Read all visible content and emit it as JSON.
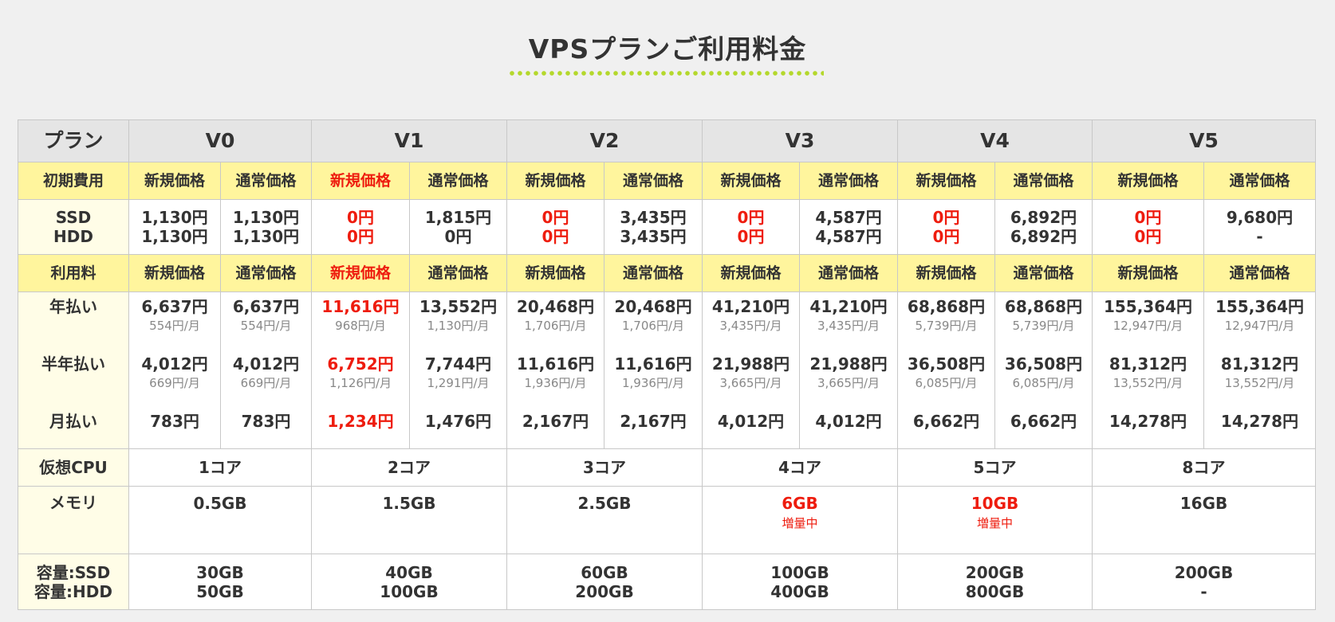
{
  "title": "VPSプランご利用料金",
  "labels": {
    "plan": "プラン",
    "initial": "初期費用",
    "ssd": "SSD",
    "hdd": "HDD",
    "usage": "利用料",
    "annual": "年払い",
    "half": "半年払い",
    "monthly": "月払い",
    "cpu": "仮想CPU",
    "memory": "メモリ",
    "cap_ssd": "容量:SSD",
    "cap_hdd": "容量:HDD",
    "new_price": "新規価格",
    "normal_price": "通常価格"
  },
  "colors": {
    "accent_red": "#ee1c0e",
    "header_yellow": "#fff59d",
    "dot_green": "#b4d82c"
  },
  "plans": [
    {
      "name": "V0",
      "init_new": {
        "ssd": "1,130円",
        "hdd": "1,130円"
      },
      "init_norm": {
        "ssd": "1,130円",
        "hdd": "1,130円"
      },
      "fee_new": {
        "annual": "6,637円",
        "annual_sub": "554円/月",
        "half": "4,012円",
        "half_sub": "669円/月",
        "monthly": "783円"
      },
      "fee_norm": {
        "annual": "6,637円",
        "annual_sub": "554円/月",
        "half": "4,012円",
        "half_sub": "669円/月",
        "monthly": "783円"
      },
      "cpu": "1コア",
      "memory": "0.5GB",
      "memory_note": "",
      "cap_ssd": "30GB",
      "cap_hdd": "50GB"
    },
    {
      "name": "V1",
      "init_new": {
        "ssd": "0円",
        "hdd": "0円"
      },
      "init_norm": {
        "ssd": "1,815円",
        "hdd": "0円"
      },
      "fee_new": {
        "annual": "11,616円",
        "annual_sub": "968円/月",
        "half": "6,752円",
        "half_sub": "1,126円/月",
        "monthly": "1,234円"
      },
      "fee_norm": {
        "annual": "13,552円",
        "annual_sub": "1,130円/月",
        "half": "7,744円",
        "half_sub": "1,291円/月",
        "monthly": "1,476円"
      },
      "cpu": "2コア",
      "memory": "1.5GB",
      "memory_note": "",
      "cap_ssd": "40GB",
      "cap_hdd": "100GB"
    },
    {
      "name": "V2",
      "init_new": {
        "ssd": "0円",
        "hdd": "0円"
      },
      "init_norm": {
        "ssd": "3,435円",
        "hdd": "3,435円"
      },
      "fee_new": {
        "annual": "20,468円",
        "annual_sub": "1,706円/月",
        "half": "11,616円",
        "half_sub": "1,936円/月",
        "monthly": "2,167円"
      },
      "fee_norm": {
        "annual": "20,468円",
        "annual_sub": "1,706円/月",
        "half": "11,616円",
        "half_sub": "1,936円/月",
        "monthly": "2,167円"
      },
      "cpu": "3コア",
      "memory": "2.5GB",
      "memory_note": "",
      "cap_ssd": "60GB",
      "cap_hdd": "200GB"
    },
    {
      "name": "V3",
      "init_new": {
        "ssd": "0円",
        "hdd": "0円"
      },
      "init_norm": {
        "ssd": "4,587円",
        "hdd": "4,587円"
      },
      "fee_new": {
        "annual": "41,210円",
        "annual_sub": "3,435円/月",
        "half": "21,988円",
        "half_sub": "3,665円/月",
        "monthly": "4,012円"
      },
      "fee_norm": {
        "annual": "41,210円",
        "annual_sub": "3,435円/月",
        "half": "21,988円",
        "half_sub": "3,665円/月",
        "monthly": "4,012円"
      },
      "cpu": "4コア",
      "memory": "6GB",
      "memory_note": "増量中",
      "cap_ssd": "100GB",
      "cap_hdd": "400GB"
    },
    {
      "name": "V4",
      "init_new": {
        "ssd": "0円",
        "hdd": "0円"
      },
      "init_norm": {
        "ssd": "6,892円",
        "hdd": "6,892円"
      },
      "fee_new": {
        "annual": "68,868円",
        "annual_sub": "5,739円/月",
        "half": "36,508円",
        "half_sub": "6,085円/月",
        "monthly": "6,662円"
      },
      "fee_norm": {
        "annual": "68,868円",
        "annual_sub": "5,739円/月",
        "half": "36,508円",
        "half_sub": "6,085円/月",
        "monthly": "6,662円"
      },
      "cpu": "5コア",
      "memory": "10GB",
      "memory_note": "増量中",
      "cap_ssd": "200GB",
      "cap_hdd": "800GB"
    },
    {
      "name": "V5",
      "init_new": {
        "ssd": "0円",
        "hdd": "0円"
      },
      "init_norm": {
        "ssd": "9,680円",
        "hdd": "-"
      },
      "fee_new": {
        "annual": "155,364円",
        "annual_sub": "12,947円/月",
        "half": "81,312円",
        "half_sub": "13,552円/月",
        "monthly": "14,278円"
      },
      "fee_norm": {
        "annual": "155,364円",
        "annual_sub": "12,947円/月",
        "half": "81,312円",
        "half_sub": "13,552円/月",
        "monthly": "14,278円"
      },
      "cpu": "8コア",
      "memory": "16GB",
      "memory_note": "",
      "cap_ssd": "200GB",
      "cap_hdd": "-"
    }
  ]
}
